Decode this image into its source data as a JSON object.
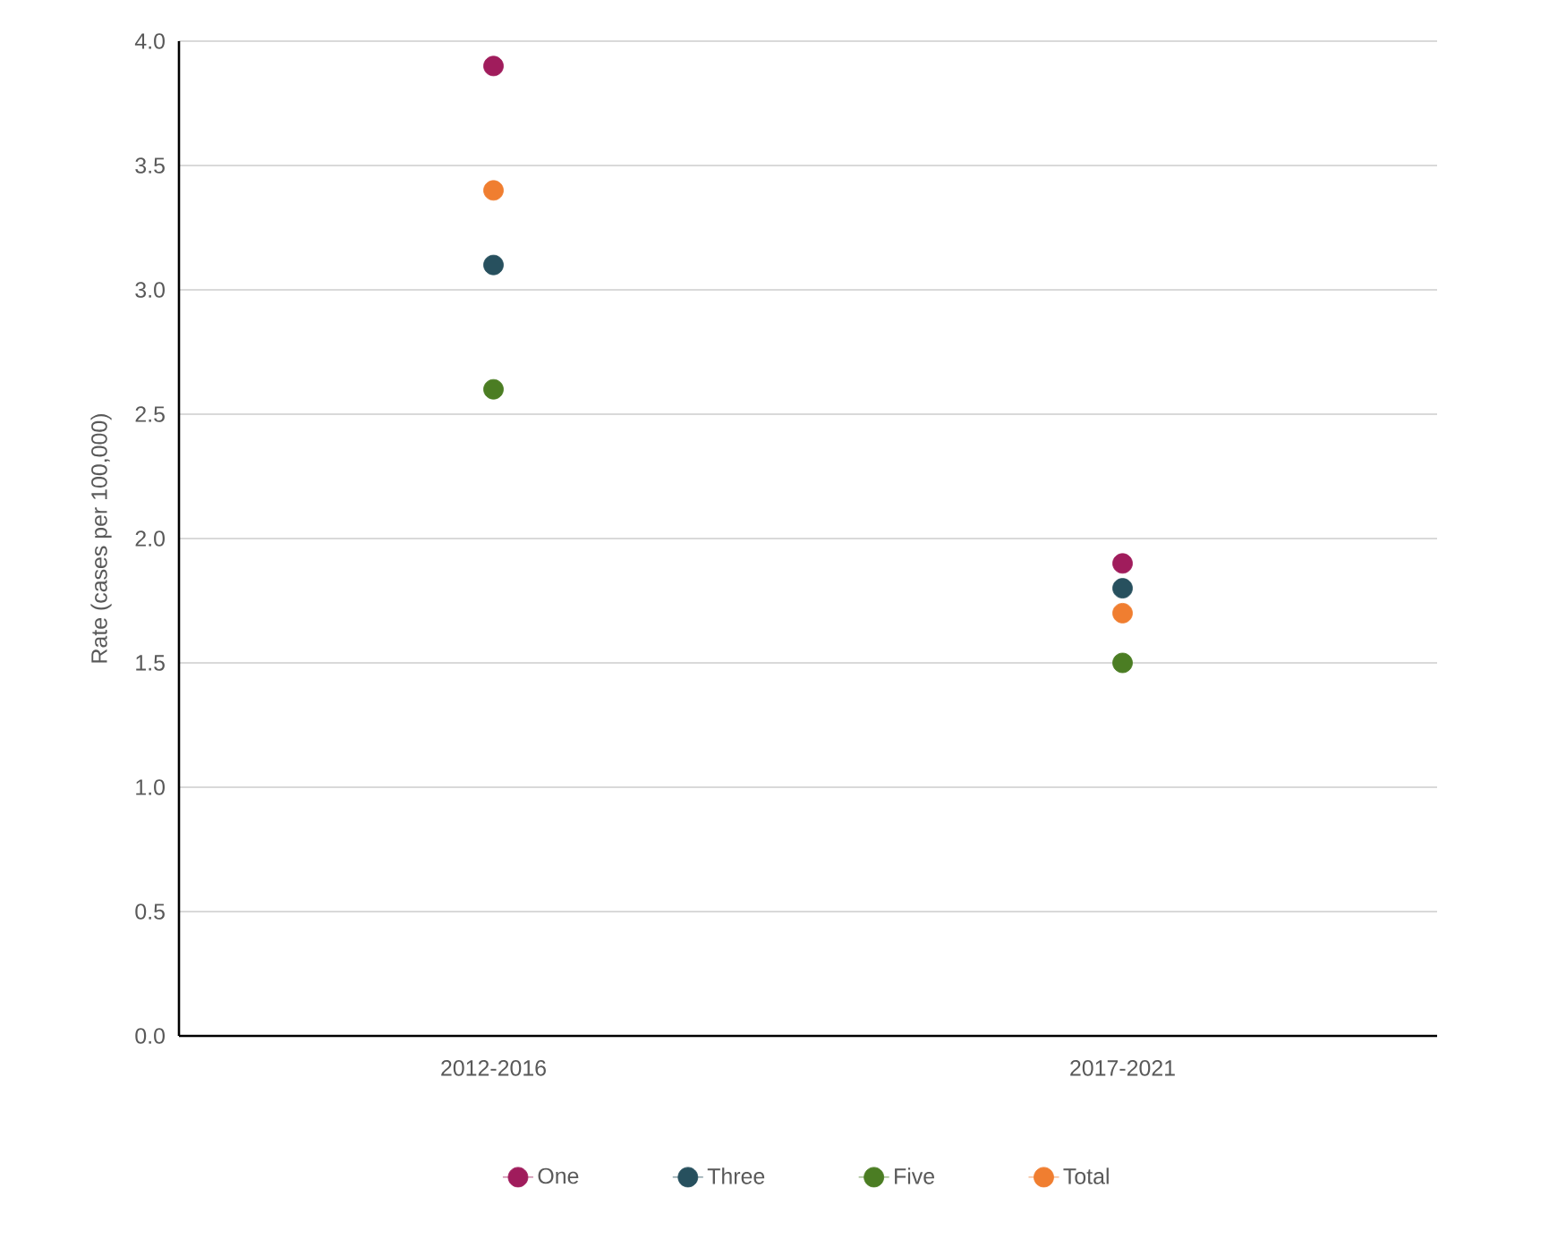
{
  "chart_data": {
    "type": "scatter",
    "ylabel": "Rate (cases per 100,000)",
    "categories": [
      "2012-2016",
      "2017-2021"
    ],
    "series": [
      {
        "name": "One",
        "color": "#a01c5c",
        "values": [
          3.9,
          1.9
        ]
      },
      {
        "name": "Three",
        "color": "#27505e",
        "values": [
          3.1,
          1.8
        ]
      },
      {
        "name": "Five",
        "color": "#4b7d23",
        "values": [
          2.6,
          1.5
        ]
      },
      {
        "name": "Total",
        "color": "#f07e30",
        "values": [
          3.4,
          1.7
        ]
      }
    ],
    "ylim": [
      0,
      4
    ],
    "yticks": [
      {
        "value": 0,
        "label": "0.0"
      },
      0.5,
      {
        "value": 1,
        "label": "1.0"
      },
      1.5,
      {
        "value": 2,
        "label": "2.0"
      },
      2.5,
      {
        "value": 3,
        "label": "3.0"
      },
      3.5,
      {
        "value": 4,
        "label": "4.0"
      }
    ],
    "grid": "y",
    "legend": "bottom",
    "marker": "circle"
  }
}
